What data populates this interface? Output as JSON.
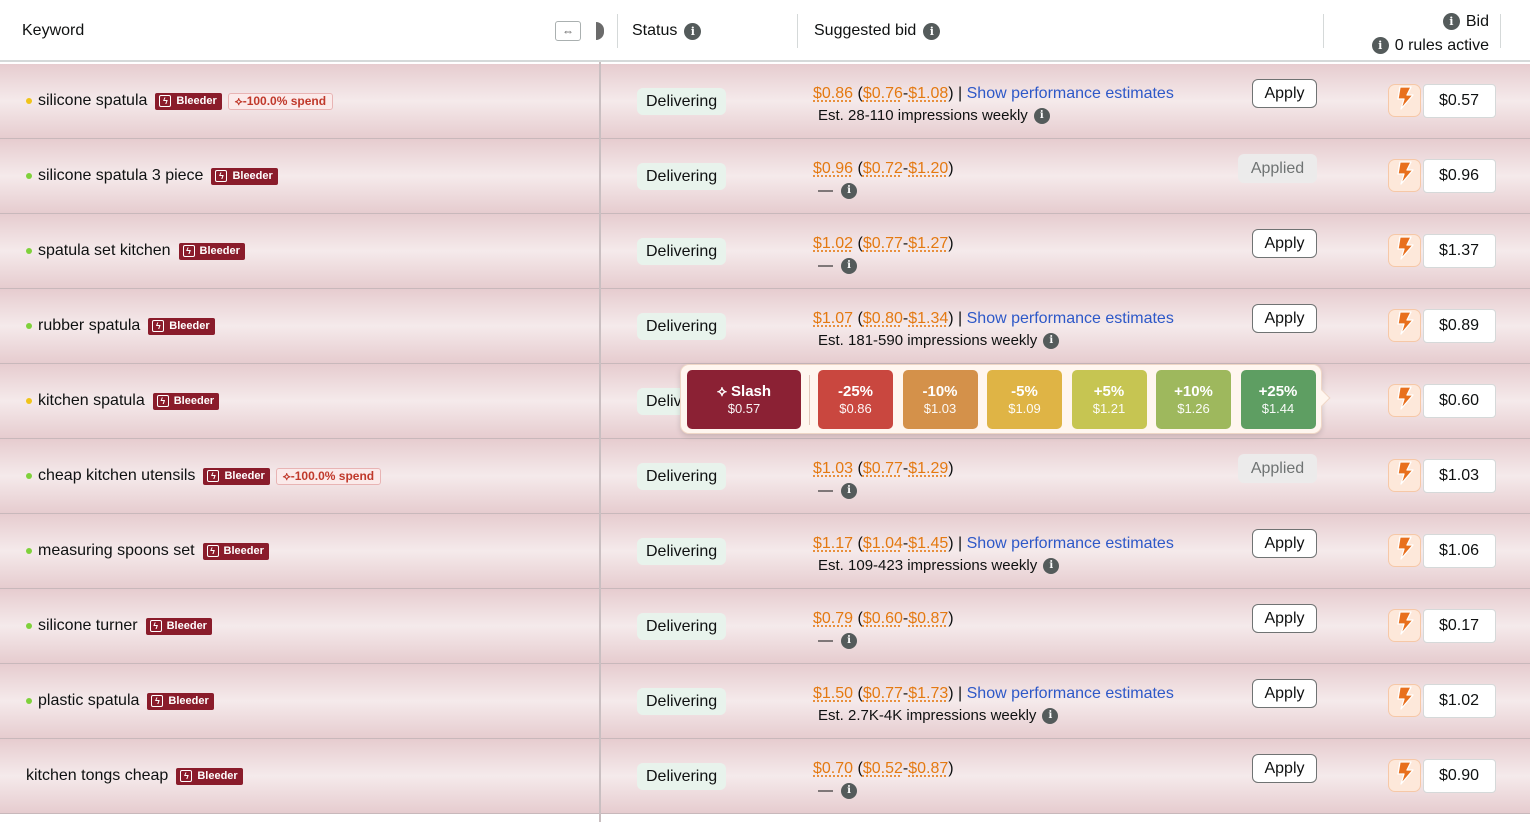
{
  "header": {
    "keyword_label": "Keyword",
    "resize_glyph": "⇔",
    "status_label": "Status",
    "suggested_bid_label": "Suggested bid",
    "bid_label": "Bid",
    "rules_label": "0 rules active"
  },
  "labels": {
    "bleeder": "Bleeder",
    "apply": "Apply",
    "applied": "Applied",
    "show_estimates": "Show performance estimates",
    "dash": "—",
    "info_glyph": "i"
  },
  "rows": [
    {
      "keyword": "silicone spatula",
      "dot": "yellow",
      "spend": "-100.0% spend",
      "status": "Delivering",
      "bid": "$0.86",
      "low": "$0.76",
      "high": "$1.08",
      "estimate": "Est. 28-110 impressions weekly",
      "action": "Apply",
      "current_bid": "$0.57"
    },
    {
      "keyword": "silicone spatula 3 piece",
      "dot": "green",
      "spend": "",
      "status": "Delivering",
      "bid": "$0.96",
      "low": "$0.72",
      "high": "$1.20",
      "estimate": "",
      "action": "Applied",
      "current_bid": "$0.96"
    },
    {
      "keyword": "spatula set kitchen",
      "dot": "green",
      "spend": "",
      "status": "Delivering",
      "bid": "$1.02",
      "low": "$0.77",
      "high": "$1.27",
      "estimate": "",
      "action": "Apply",
      "current_bid": "$1.37"
    },
    {
      "keyword": "rubber spatula",
      "dot": "green",
      "spend": "",
      "status": "Delivering",
      "bid": "$1.07",
      "low": "$0.80",
      "high": "$1.34",
      "estimate": "Est. 181-590 impressions weekly",
      "action": "Apply",
      "current_bid": "$0.89"
    },
    {
      "keyword": "kitchen spatula",
      "dot": "yellow",
      "spend": "",
      "status": "Delivering",
      "bid": "",
      "low": "",
      "high": "",
      "estimate": "",
      "action": "",
      "current_bid": "$0.60"
    },
    {
      "keyword": "cheap kitchen utensils",
      "dot": "green",
      "spend": "-100.0% spend",
      "status": "Delivering",
      "bid": "$1.03",
      "low": "$0.77",
      "high": "$1.29",
      "estimate": "",
      "action": "Applied",
      "current_bid": "$1.03"
    },
    {
      "keyword": "measuring spoons set",
      "dot": "green",
      "spend": "",
      "status": "Delivering",
      "bid": "$1.17",
      "low": "$1.04",
      "high": "$1.45",
      "estimate": "Est. 109-423 impressions weekly",
      "action": "Apply",
      "current_bid": "$1.06"
    },
    {
      "keyword": "silicone turner",
      "dot": "green",
      "spend": "",
      "status": "Delivering",
      "bid": "$0.79",
      "low": "$0.60",
      "high": "$0.87",
      "estimate": "",
      "action": "Apply",
      "current_bid": "$0.17"
    },
    {
      "keyword": "plastic spatula",
      "dot": "green",
      "spend": "",
      "status": "Delivering",
      "bid": "$1.50",
      "low": "$0.77",
      "high": "$1.73",
      "estimate": "Est. 2.7K-4K impressions weekly",
      "action": "Apply",
      "current_bid": "$1.02"
    },
    {
      "keyword": "kitchen tongs cheap",
      "dot": "",
      "spend": "",
      "status": "Delivering",
      "bid": "$0.70",
      "low": "$0.52",
      "high": "$0.87",
      "estimate": "",
      "action": "Apply",
      "current_bid": "$0.90"
    }
  ],
  "popover": {
    "slash": {
      "label": "Slash",
      "value": "$0.57"
    },
    "options": [
      {
        "label": "-25%",
        "value": "$0.86",
        "color": "#c9473f"
      },
      {
        "label": "-10%",
        "value": "$1.03",
        "color": "#d4914a"
      },
      {
        "label": "-5%",
        "value": "$1.09",
        "color": "#dfb445"
      },
      {
        "label": "+5%",
        "value": "$1.21",
        "color": "#c6c552"
      },
      {
        "label": "+10%",
        "value": "$1.26",
        "color": "#9eb85d"
      },
      {
        "label": "+25%",
        "value": "$1.44",
        "color": "#5e9e62"
      }
    ]
  },
  "colors": {
    "bleeder": "#8a1c2b",
    "accent_orange": "#e47911",
    "link": "#2d58c8"
  }
}
